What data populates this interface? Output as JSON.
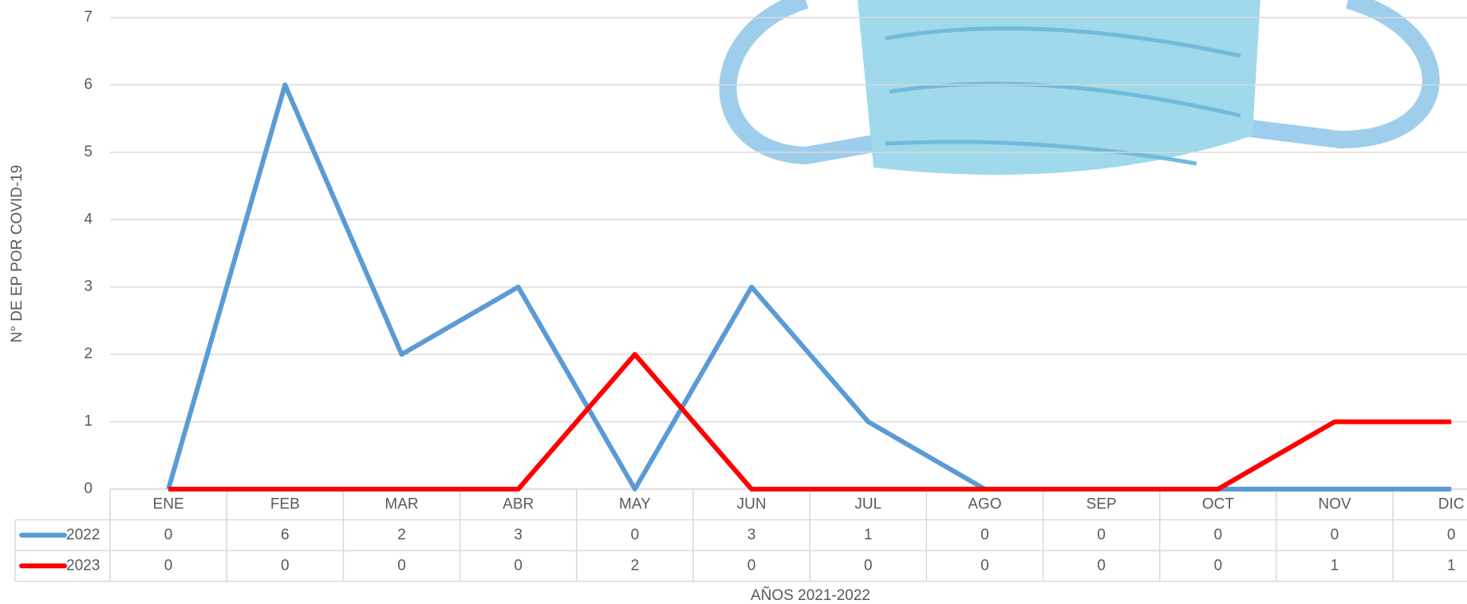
{
  "chart_data": {
    "type": "line",
    "y_label": "N° DE EP POR COVID-19",
    "x_label": "AÑOS 2021-2022",
    "categories": [
      "ENE",
      "FEB",
      "MAR",
      "ABR",
      "MAY",
      "JUN",
      "JUL",
      "AGO",
      "SEP",
      "OCT",
      "NOV",
      "DIC"
    ],
    "series": [
      {
        "name": "2022",
        "color": "#5b9bd5",
        "values": [
          0,
          6,
          2,
          3,
          0,
          3,
          1,
          0,
          0,
          0,
          0,
          0
        ]
      },
      {
        "name": "2023",
        "color": "#ff0000",
        "values": [
          0,
          0,
          0,
          0,
          2,
          0,
          0,
          0,
          0,
          0,
          1,
          1
        ]
      }
    ],
    "ylim": [
      0,
      7
    ],
    "yticks": [
      0,
      1,
      2,
      3,
      4,
      5,
      6,
      7
    ],
    "grid": true,
    "data_table": true
  }
}
